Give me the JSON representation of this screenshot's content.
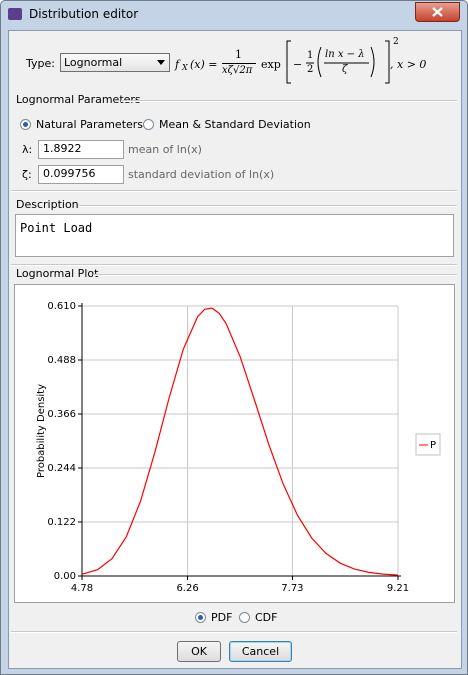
{
  "window": {
    "title": "Distribution editor"
  },
  "type_label": "Type:",
  "type_value": "Lognormal",
  "formula": {
    "lhs": "f",
    "lhs_sub": "X",
    "lhs_arg": "(x) =",
    "frac_num": "1",
    "frac_den": "xζ√2π",
    "exp": "exp",
    "half_sign": "−",
    "half_num": "1",
    "half_den": "2",
    "inner_num": "ln x − λ",
    "inner_den": "ζ",
    "power": "2",
    "condition": ",  x > 0"
  },
  "parameters": {
    "title": "Lognormal Parameters",
    "options": [
      "Natural Parameters",
      "Mean & Standard Deviation"
    ],
    "fields": [
      {
        "symbol": "λ:",
        "value": "1.8922",
        "hint": "mean of ln(x)"
      },
      {
        "symbol": "ζ:",
        "value": "0.099756",
        "hint": "standard deviation of ln(x)"
      }
    ]
  },
  "description": {
    "title": "Description",
    "text": "Point Load"
  },
  "plot": {
    "title": "Lognormal Plot",
    "options": [
      "PDF",
      "CDF"
    ]
  },
  "buttons": [
    "OK",
    "Cancel"
  ],
  "chart_data": {
    "type": "line",
    "ylabel": "Probability Density",
    "x": [
      4.78,
      5.0,
      5.2,
      5.4,
      5.6,
      5.8,
      6.0,
      6.2,
      6.4,
      6.5,
      6.6,
      6.7,
      6.8,
      7.0,
      7.2,
      7.4,
      7.6,
      7.8,
      8.0,
      8.2,
      8.4,
      8.6,
      8.8,
      9.0,
      9.21
    ],
    "series": [
      {
        "name": "P",
        "color": "#ff0000",
        "values": [
          0.0038,
          0.0144,
          0.0391,
          0.0882,
          0.1688,
          0.2786,
          0.4016,
          0.5124,
          0.5857,
          0.6025,
          0.6052,
          0.594,
          0.5704,
          0.4942,
          0.3965,
          0.2965,
          0.208,
          0.1374,
          0.0859,
          0.0511,
          0.029,
          0.0157,
          0.0082,
          0.0042,
          0.0019
        ]
      }
    ],
    "xlim": [
      4.78,
      9.21
    ],
    "ylim": [
      0,
      0.61
    ],
    "xticks": [
      4.78,
      6.26,
      7.73,
      9.21
    ],
    "yticks": [
      {
        "value": 0,
        "label": "0.00"
      },
      0.122,
      0.244,
      0.366,
      0.488,
      {
        "value": 0.61,
        "label": "0.610"
      }
    ],
    "grid": true
  }
}
